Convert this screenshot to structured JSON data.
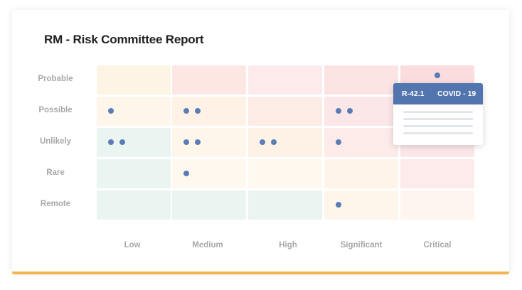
{
  "report": {
    "title": "RM - Risk Committee Report"
  },
  "matrix": {
    "likelihood_labels": [
      "Probable",
      "Possible",
      "Unlikely",
      "Rare",
      "Remote"
    ],
    "impact_labels": [
      "Low",
      "Medium",
      "High",
      "Significant",
      "Critical"
    ],
    "cell_colors": [
      [
        "#FEF4E6",
        "#FDE7E3",
        "#FDEBEB",
        "#FCE3E4",
        "#FBDDDF"
      ],
      [
        "#FEF6EB",
        "#FEF2E6",
        "#FDEBE6",
        "#FCE7E8",
        "#FBE3E4"
      ],
      [
        "#EAF4F1",
        "#FEF6EA",
        "#FEF2E6",
        "#FDEBEA",
        "#FCE7E8"
      ],
      [
        "#EAF4F1",
        "#FEF8EE",
        "#FEF8EE",
        "#FEF4EA",
        "#FDEAEA"
      ],
      [
        "#EAF4F1",
        "#EAF4F1",
        "#EAF4F1",
        "#FEF6EA",
        "#FEF6EE"
      ]
    ],
    "risk_counts": [
      [
        0,
        0,
        0,
        0,
        1
      ],
      [
        1,
        2,
        0,
        2,
        0
      ],
      [
        2,
        2,
        2,
        1,
        0
      ],
      [
        0,
        1,
        0,
        0,
        0
      ],
      [
        0,
        0,
        0,
        1,
        0
      ]
    ],
    "dot_color": "#5B7DB5"
  },
  "tooltip": {
    "risk_id": "R-42.1",
    "risk_name": "COVID - 19",
    "header_color": "#5375AF"
  },
  "accent_color": "#F2B54E"
}
